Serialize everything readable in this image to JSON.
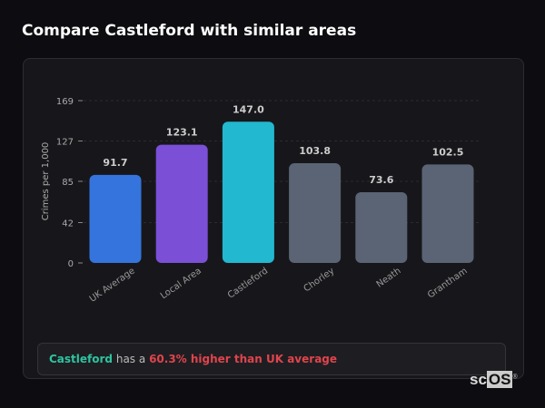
{
  "title": "Compare Castleford with similar areas",
  "chart_data": {
    "type": "bar",
    "categories": [
      "UK Average",
      "Local Area",
      "Castleford",
      "Chorley",
      "Neath",
      "Grantham"
    ],
    "values": [
      91.7,
      123.1,
      147.0,
      103.8,
      73.6,
      102.5
    ],
    "value_labels": [
      "91.7",
      "123.1",
      "147.0",
      "103.8",
      "73.6",
      "102.5"
    ],
    "colors": [
      "#3574dc",
      "#7b4fd6",
      "#22b8d0",
      "#5a6474",
      "#5a6474",
      "#5a6474"
    ],
    "ylabel": "Crimes per 1,000",
    "xlabel": "",
    "yticks": [
      0,
      42,
      85,
      127,
      169
    ],
    "ylim": [
      0,
      169
    ],
    "grid": true
  },
  "summary": {
    "area": "Castleford",
    "connector": "has a",
    "comparison": "60.3% higher than UK average"
  },
  "logo": {
    "text_a": "sc",
    "text_b": "OS",
    "mark": "®"
  }
}
